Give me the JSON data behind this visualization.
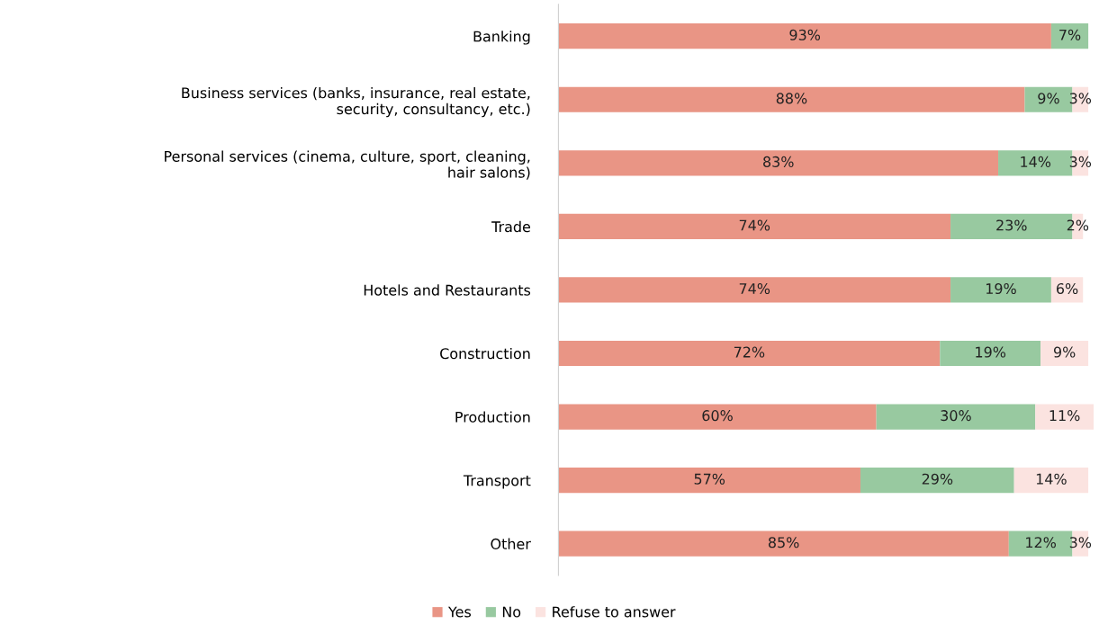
{
  "chart_data": {
    "type": "bar",
    "orientation": "horizontal",
    "stacked": true,
    "legend": "bottom",
    "grid": false,
    "tick_labels": "y",
    "categories": [
      "Banking",
      "Business services (banks, insurance, real estate,\nsecurity, consultancy, etc.)",
      "Personal services (cinema, culture, sport, cleaning,\nhair salons)",
      "Trade",
      "Hotels and Restaurants",
      "Construction",
      "Production",
      "Transport",
      "Other"
    ],
    "series": [
      {
        "name": "Yes",
        "color": "#e99585",
        "values": [
          93,
          88,
          83,
          74,
          74,
          72,
          60,
          57,
          85
        ],
        "value_labels": [
          "93%",
          "88%",
          "83%",
          "74%",
          "74%",
          "72%",
          "60%",
          "57%",
          "85%"
        ]
      },
      {
        "name": "No",
        "color": "#98c9a0",
        "values": [
          7,
          9,
          14,
          23,
          19,
          19,
          30,
          29,
          12
        ],
        "value_labels": [
          "7%",
          "9%",
          "14%",
          "23%",
          "19%",
          "19%",
          "30%",
          "29%",
          "12%"
        ]
      },
      {
        "name": "Refuse to answer",
        "color": "#fbe3e0",
        "values": [
          null,
          3,
          3,
          2,
          6,
          9,
          11,
          14,
          3
        ],
        "value_labels": [
          null,
          "3%",
          "3%",
          "2%",
          "6%",
          "9%",
          "11%",
          "14%",
          "3%"
        ]
      }
    ]
  }
}
